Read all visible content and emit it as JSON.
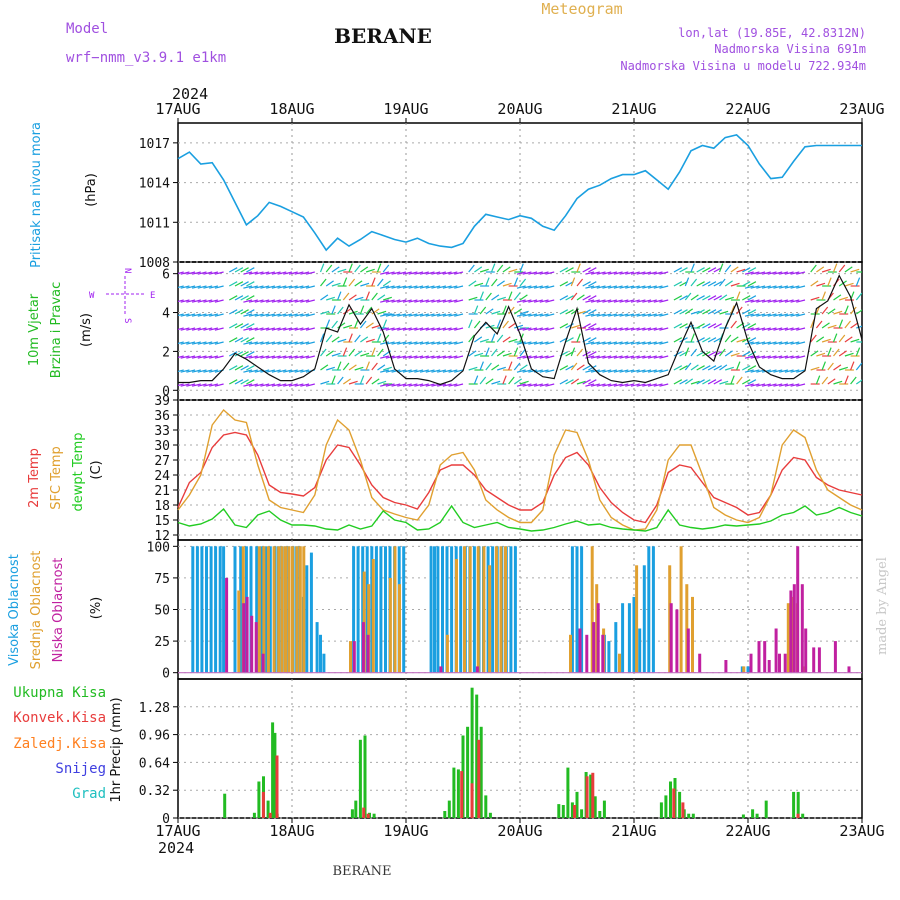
{
  "header": {
    "model_label": "Model",
    "model_name": "wrf−nmm_v3.9.1  e1km",
    "title": "BERANE",
    "meteogram": "Meteogram",
    "lonlat": "lon,lat (19.85E, 42.8312N)",
    "elevation": "Nadmorska Visina 691m",
    "model_elevation": "Nadmorska Visina u modelu 722.934m",
    "footer": "BERANE",
    "credit": "made by Angel",
    "year": "2024"
  },
  "colors": {
    "pressure": "#1a9fe0",
    "wind_label": "#22bb22",
    "wind_purple": "#a020f0",
    "temp2m": "#e83c3c",
    "sfc": "#e0a030",
    "dew": "#22cc22",
    "high_cloud": "#1a9fe0",
    "mid_cloud": "#e0a030",
    "low_cloud": "#c020a0",
    "total_precip": "#22bb22",
    "conv": "#e83c3c",
    "frozen": "#ff8020",
    "snow": "#4040e0",
    "grad": "#20c0c0"
  },
  "chart_data": [
    {
      "id": "pressure",
      "type": "line",
      "ylabel_left": "Pritisak na nivou mora",
      "ylabel": "(hPa)",
      "ylim": [
        1008,
        1018.5
      ],
      "yticks": [
        "1017",
        "1014",
        "1011",
        "1008"
      ],
      "x_day_range": [
        0,
        6
      ],
      "x": [
        0,
        0.1,
        0.2,
        0.3,
        0.4,
        0.5,
        0.6,
        0.7,
        0.8,
        0.9,
        1.0,
        1.1,
        1.2,
        1.3,
        1.4,
        1.5,
        1.6,
        1.7,
        1.8,
        1.9,
        2.0,
        2.1,
        2.2,
        2.3,
        2.4,
        2.5,
        2.6,
        2.7,
        2.8,
        2.9,
        3.0,
        3.1,
        3.2,
        3.3,
        3.4,
        3.5,
        3.6,
        3.7,
        3.8,
        3.9,
        4.0,
        4.1,
        4.2,
        4.3,
        4.4,
        4.5,
        4.6,
        4.7,
        4.8,
        4.9,
        5.0,
        5.1,
        5.2,
        5.3,
        5.4,
        5.5,
        5.6,
        5.7,
        5.8,
        5.9,
        6.0
      ],
      "values": [
        1015.8,
        1016.3,
        1015.4,
        1015.5,
        1014.2,
        1012.5,
        1010.8,
        1011.5,
        1012.5,
        1012.2,
        1011.8,
        1011.4,
        1010.2,
        1008.9,
        1009.8,
        1009.2,
        1009.7,
        1010.3,
        1010.0,
        1009.7,
        1009.5,
        1009.8,
        1009.4,
        1009.2,
        1009.1,
        1009.4,
        1010.7,
        1011.6,
        1011.4,
        1011.2,
        1011.5,
        1011.3,
        1010.7,
        1010.4,
        1011.5,
        1012.8,
        1013.5,
        1013.8,
        1014.3,
        1014.6,
        1014.6,
        1014.9,
        1014.2,
        1013.5,
        1014.8,
        1016.4,
        1016.8,
        1016.6,
        1017.4,
        1017.6,
        1016.8,
        1015.4,
        1014.3,
        1014.4,
        1015.6,
        1016.7,
        1016.8,
        1016.8,
        1016.8,
        1016.8,
        1016.8
      ]
    },
    {
      "id": "wind",
      "type": "line",
      "ylabel_left_1": "10m Vjetar",
      "ylabel_left_2": "Brzina i Pravac",
      "ylabel": "(m/s)",
      "compass": {
        "n": "N",
        "s": "S",
        "e": "E",
        "w": "W"
      },
      "ylim": [
        -0.5,
        6.6
      ],
      "yticks": [
        "6",
        "4",
        "2",
        "0"
      ],
      "x_day_range": [
        0,
        6
      ],
      "x": [
        0,
        0.1,
        0.2,
        0.3,
        0.4,
        0.5,
        0.6,
        0.7,
        0.8,
        0.9,
        1.0,
        1.1,
        1.2,
        1.3,
        1.4,
        1.5,
        1.6,
        1.7,
        1.8,
        1.9,
        2.0,
        2.1,
        2.2,
        2.3,
        2.4,
        2.5,
        2.6,
        2.7,
        2.8,
        2.9,
        3.0,
        3.1,
        3.2,
        3.3,
        3.4,
        3.5,
        3.6,
        3.7,
        3.8,
        3.9,
        4.0,
        4.1,
        4.2,
        4.3,
        4.4,
        4.5,
        4.6,
        4.7,
        4.8,
        4.9,
        5.0,
        5.1,
        5.2,
        5.3,
        5.4,
        5.5,
        5.6,
        5.7,
        5.8,
        5.9,
        6.0
      ],
      "values": [
        0.4,
        0.4,
        0.5,
        0.5,
        1.1,
        1.9,
        1.6,
        1.2,
        0.8,
        0.5,
        0.5,
        0.7,
        1.1,
        3.2,
        3.0,
        4.4,
        3.4,
        4.2,
        3.0,
        1.1,
        0.6,
        0.6,
        0.5,
        0.3,
        0.5,
        1.0,
        2.8,
        3.5,
        2.9,
        4.3,
        2.9,
        1.1,
        0.7,
        0.6,
        2.5,
        4.2,
        1.4,
        0.8,
        0.5,
        0.4,
        0.5,
        0.4,
        0.6,
        0.8,
        2.2,
        3.5,
        2.0,
        1.5,
        3.2,
        4.5,
        2.5,
        1.2,
        0.8,
        0.6,
        0.6,
        1.0,
        4.2,
        4.6,
        5.9,
        4.8,
        2.6
      ]
    },
    {
      "id": "temperature",
      "type": "line",
      "ylabel_left_1": "2m Temp",
      "ylabel_left_2": "SFC Temp",
      "ylabel_left_3": "dewpt Temp",
      "ylabel": "(C)",
      "ylim": [
        11,
        39
      ],
      "yticks": [
        "39",
        "36",
        "33",
        "30",
        "27",
        "24",
        "21",
        "18",
        "15",
        "12"
      ],
      "x_day_range": [
        0,
        6
      ],
      "x": [
        0,
        0.1,
        0.2,
        0.3,
        0.4,
        0.5,
        0.6,
        0.7,
        0.8,
        0.9,
        1.0,
        1.1,
        1.2,
        1.3,
        1.4,
        1.5,
        1.6,
        1.7,
        1.8,
        1.9,
        2.0,
        2.1,
        2.2,
        2.3,
        2.4,
        2.5,
        2.6,
        2.7,
        2.8,
        2.9,
        3.0,
        3.1,
        3.2,
        3.3,
        3.4,
        3.5,
        3.6,
        3.7,
        3.8,
        3.9,
        4.0,
        4.1,
        4.2,
        4.3,
        4.4,
        4.5,
        4.6,
        4.7,
        4.8,
        4.9,
        5.0,
        5.1,
        5.2,
        5.3,
        5.4,
        5.5,
        5.6,
        5.7,
        5.8,
        5.9,
        6.0
      ],
      "series": [
        {
          "name": "2m Temp",
          "color_key": "temp2m",
          "values": [
            17.5,
            22.5,
            24.5,
            29.5,
            32.0,
            32.5,
            32.0,
            28.0,
            22.0,
            20.5,
            20.2,
            19.8,
            21.5,
            27.0,
            30.0,
            29.5,
            26.0,
            22.0,
            19.5,
            18.5,
            18.0,
            17.2,
            20.5,
            25.0,
            26.0,
            26.0,
            24.0,
            21.0,
            19.5,
            18.0,
            17.0,
            17.0,
            18.5,
            24.0,
            27.5,
            28.5,
            26.0,
            21.5,
            18.5,
            16.5,
            15.0,
            14.5,
            18.0,
            24.5,
            26.0,
            25.5,
            22.5,
            19.5,
            18.5,
            17.5,
            16.0,
            16.5,
            20.0,
            25.0,
            27.5,
            27.0,
            23.5,
            22.0,
            21.0,
            20.5,
            20.0
          ]
        },
        {
          "name": "SFC Temp",
          "color_key": "sfc",
          "values": [
            17.0,
            20.0,
            24.0,
            34.0,
            37.0,
            35.0,
            34.5,
            26.0,
            19.0,
            17.5,
            17.0,
            16.5,
            20.0,
            30.0,
            35.0,
            33.0,
            27.0,
            19.5,
            17.0,
            16.2,
            15.5,
            15.0,
            18.0,
            26.0,
            28.0,
            28.5,
            25.0,
            19.0,
            17.0,
            15.5,
            14.5,
            14.5,
            17.0,
            28.0,
            33.0,
            32.5,
            27.0,
            19.0,
            15.5,
            14.0,
            13.0,
            13.2,
            17.0,
            27.0,
            30.0,
            30.0,
            24.0,
            17.5,
            16.0,
            15.0,
            14.5,
            15.5,
            20.0,
            30.0,
            33.0,
            31.5,
            25.0,
            21.0,
            19.5,
            18.0,
            17.0
          ]
        },
        {
          "name": "dewpt Temp",
          "color_key": "dew",
          "values": [
            14.5,
            13.8,
            14.2,
            15.2,
            17.2,
            14.0,
            13.5,
            16.0,
            16.8,
            15.0,
            14.0,
            14.0,
            13.8,
            13.2,
            13.0,
            14.0,
            13.2,
            13.8,
            16.8,
            15.0,
            14.5,
            13.0,
            13.2,
            14.5,
            17.8,
            14.5,
            13.5,
            14.0,
            14.5,
            13.5,
            13.2,
            12.8,
            13.0,
            13.5,
            14.2,
            14.8,
            14.0,
            14.2,
            13.5,
            13.2,
            13.0,
            12.8,
            13.5,
            17.0,
            14.0,
            13.5,
            13.2,
            13.5,
            14.0,
            13.8,
            14.0,
            14.2,
            14.8,
            16.0,
            16.5,
            17.8,
            16.0,
            16.5,
            17.5,
            16.5,
            15.8
          ]
        }
      ]
    },
    {
      "id": "clouds",
      "type": "bar",
      "ylabel_left_1": "Visoka Oblacnost",
      "ylabel_left_2": "Srednja Oblacnost",
      "ylabel_left_3": "Niska Oblacnost",
      "ylabel": "(%)",
      "ylim": [
        -5,
        105
      ],
      "yticks": [
        "100",
        "75",
        "50",
        "25",
        "0"
      ],
      "x_day_range": [
        0,
        6
      ],
      "series": [
        {
          "name": "Visoka Oblacnost",
          "color_key": "high_cloud",
          "x": [
            0.13,
            0.17,
            0.21,
            0.25,
            0.29,
            0.33,
            0.37,
            0.4,
            0.5,
            0.55,
            0.6,
            0.64,
            0.69,
            0.73,
            0.77,
            0.81,
            0.85,
            0.88,
            0.91,
            0.94,
            0.97,
            1.01,
            1.04,
            1.07,
            1.1,
            1.13,
            1.17,
            1.22,
            1.25,
            1.28,
            1.54,
            1.58,
            1.62,
            1.66,
            1.7,
            1.74,
            1.78,
            1.82,
            1.86,
            1.9,
            1.94,
            1.98,
            2.22,
            2.25,
            2.28,
            2.32,
            2.36,
            2.4,
            2.44,
            2.48,
            2.52,
            2.56,
            2.6,
            2.64,
            2.68,
            2.72,
            2.76,
            2.8,
            2.84,
            2.88,
            2.92,
            2.96,
            3.46,
            3.5,
            3.54,
            3.74,
            3.78,
            3.84,
            3.9,
            3.96,
            4.0,
            4.05,
            4.09,
            4.13,
            4.17,
            4.95,
            5.0
          ],
          "values": [
            100,
            100,
            100,
            100,
            100,
            100,
            100,
            100,
            100,
            100,
            100,
            100,
            100,
            100,
            100,
            100,
            100,
            100,
            100,
            100,
            100,
            100,
            100,
            100,
            60,
            85,
            95,
            40,
            30,
            15,
            100,
            100,
            100,
            100,
            100,
            100,
            100,
            100,
            100,
            100,
            100,
            100,
            100,
            100,
            100,
            100,
            100,
            100,
            100,
            100,
            100,
            100,
            100,
            100,
            100,
            100,
            100,
            100,
            100,
            100,
            100,
            100,
            100,
            100,
            100,
            30,
            25,
            40,
            55,
            55,
            60,
            35,
            85,
            100,
            100,
            5,
            5
          ]
        },
        {
          "name": "Srednja Oblacnost",
          "color_key": "mid_cloud",
          "x": [
            0.52,
            0.56,
            0.7,
            0.74,
            0.78,
            0.83,
            0.87,
            0.9,
            0.93,
            0.96,
            0.99,
            1.03,
            1.06,
            1.09,
            1.5,
            1.62,
            1.66,
            1.7,
            1.85,
            1.89,
            1.93,
            2.35,
            2.43,
            2.5,
            2.55,
            2.62,
            2.67,
            2.72,
            2.78,
            2.82,
            2.86,
            3.43,
            3.62,
            3.66,
            3.72,
            3.86,
            4.01,
            4.3,
            4.4,
            4.45,
            4.5,
            4.95,
            5.34,
            5.38,
            5.42,
            5.48
          ],
          "values": [
            65,
            100,
            100,
            100,
            100,
            100,
            100,
            100,
            100,
            100,
            100,
            100,
            100,
            100,
            25,
            80,
            70,
            90,
            75,
            100,
            70,
            30,
            90,
            100,
            100,
            100,
            100,
            85,
            100,
            100,
            100,
            30,
            100,
            70,
            35,
            15,
            85,
            85,
            100,
            70,
            60,
            5,
            55,
            60,
            55,
            5
          ]
        },
        {
          "name": "Niska Oblacnost",
          "color_key": "low_cloud",
          "x": [
            0.4,
            0.55,
            0.58,
            0.62,
            0.66,
            0.72,
            1.52,
            1.6,
            1.64,
            2.28,
            2.6,
            3.5,
            3.56,
            3.62,
            3.66,
            3.7,
            4.3,
            4.35,
            4.45,
            4.55,
            4.78,
            5.0,
            5.07,
            5.12,
            5.16,
            5.22,
            5.25,
            5.3,
            5.35,
            5.38,
            5.41,
            5.45,
            5.48,
            5.55,
            5.6,
            5.74,
            5.86
          ],
          "values": [
            75,
            55,
            60,
            45,
            40,
            15,
            25,
            40,
            30,
            5,
            5,
            35,
            30,
            40,
            55,
            30,
            55,
            50,
            35,
            15,
            10,
            15,
            25,
            25,
            10,
            35,
            15,
            15,
            65,
            70,
            100,
            70,
            35,
            20,
            20,
            25,
            5
          ]
        }
      ]
    },
    {
      "id": "precip",
      "type": "bar",
      "ylabel_left_1": "Ukupna Kisa",
      "ylabel_left_2": "Konvek.Kisa",
      "ylabel_left_3": "Zaledj.Kisa",
      "ylabel_left_4": "Snijeg",
      "ylabel_left_5": "Grad",
      "ylabel": "1hr Precip (mm)",
      "ylim": [
        0,
        1.6
      ],
      "yticks": [
        "1.28",
        "0.96",
        "0.64",
        "0.32",
        "0"
      ],
      "x_day_range": [
        0,
        6
      ],
      "series": [
        {
          "name": "Ukupna Kisa",
          "color_key": "total_precip",
          "x": [
            0.41,
            0.67,
            0.71,
            0.75,
            0.79,
            0.83,
            0.85,
            0.87,
            1.53,
            1.56,
            1.6,
            1.64,
            1.68,
            1.72,
            2.34,
            2.38,
            2.42,
            2.46,
            2.5,
            2.54,
            2.58,
            2.62,
            2.66,
            2.7,
            2.74,
            3.34,
            3.38,
            3.42,
            3.46,
            3.5,
            3.54,
            3.58,
            3.62,
            3.66,
            3.7,
            3.74,
            4.24,
            4.28,
            4.32,
            4.36,
            4.4,
            4.44,
            4.48,
            4.52,
            4.96,
            5.04,
            5.08,
            5.16,
            5.4,
            5.44,
            5.48
          ],
          "values": [
            0.28,
            0.06,
            0.42,
            0.48,
            0.2,
            1.1,
            0.98,
            0.05,
            0.1,
            0.2,
            0.9,
            0.95,
            0.06,
            0.05,
            0.08,
            0.2,
            0.58,
            0.56,
            0.95,
            1.05,
            1.5,
            1.42,
            1.05,
            0.26,
            0.06,
            0.16,
            0.15,
            0.58,
            0.18,
            0.3,
            0.1,
            0.53,
            0.5,
            0.25,
            0.08,
            0.2,
            0.18,
            0.26,
            0.42,
            0.46,
            0.3,
            0.1,
            0.05,
            0.05,
            0.04,
            0.1,
            0.05,
            0.2,
            0.3,
            0.3,
            0.05
          ]
        },
        {
          "name": "Konvek.Kisa",
          "color_key": "conv",
          "x": [
            0.74,
            0.8,
            0.86,
            1.62,
            1.66,
            2.48,
            2.57,
            2.63,
            3.47,
            3.58,
            3.63,
            4.34,
            4.42,
            5.43
          ],
          "values": [
            0.3,
            0.06,
            0.72,
            0.12,
            0.05,
            0.54,
            0.4,
            0.9,
            0.15,
            0.48,
            0.52,
            0.34,
            0.18,
            0.05
          ]
        },
        {
          "name": "Zaledj.Kisa",
          "color_key": "frozen",
          "x": [],
          "values": []
        },
        {
          "name": "Snijeg",
          "color_key": "snow",
          "x": [],
          "values": []
        },
        {
          "name": "Grad",
          "color_key": "grad",
          "x": [],
          "values": []
        }
      ]
    }
  ],
  "x_axis": {
    "ticks": [
      "17AUG",
      "18AUG",
      "19AUG",
      "20AUG",
      "21AUG",
      "22AUG",
      "23AUG"
    ]
  }
}
